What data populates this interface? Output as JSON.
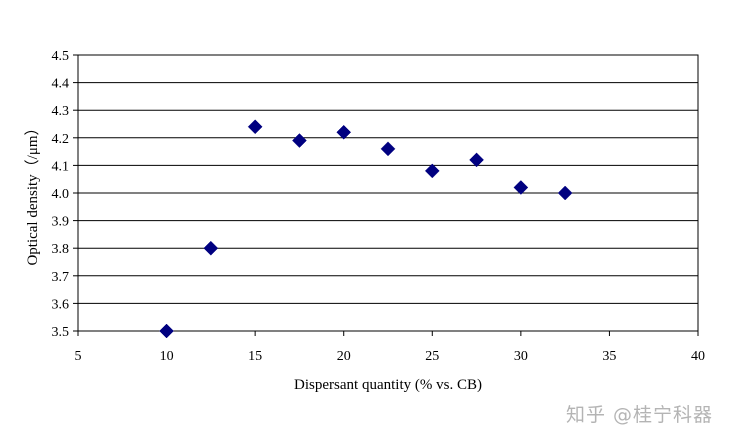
{
  "chart_data": {
    "type": "scatter",
    "title": "",
    "xlabel": "Dispersant quantity (% vs. CB)",
    "ylabel": "Optical density（/μm）",
    "xlim": [
      5,
      40
    ],
    "ylim": [
      3.5,
      4.5
    ],
    "x_ticks": [
      "5",
      "10",
      "15",
      "20",
      "25",
      "30",
      "35",
      "40"
    ],
    "y_ticks": [
      "3.5",
      "3.6",
      "3.7",
      "3.8",
      "3.9",
      "4.0",
      "4.1",
      "4.2",
      "4.3",
      "4.4",
      "4.5"
    ],
    "grid": "horizontal",
    "legend": "none",
    "marker": "diamond",
    "marker_color": "#000080",
    "series": [
      {
        "x": [
          10,
          12.5,
          15,
          17.5,
          20,
          22.5,
          25,
          27.5,
          30,
          32.5
        ],
        "y": [
          3.5,
          3.8,
          4.24,
          4.19,
          4.22,
          4.16,
          4.08,
          4.12,
          4.02,
          4.0
        ]
      }
    ]
  },
  "watermark": "知乎 @桂宁科器"
}
